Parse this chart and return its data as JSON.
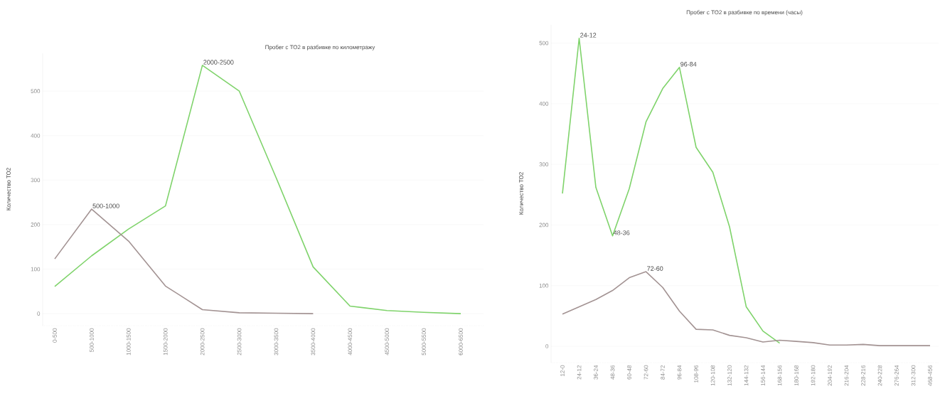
{
  "chart_data": [
    {
      "type": "line",
      "title": "Пробег с ТО2 в разбивке по километражу",
      "ylabel": "Количество ТО2",
      "categories": [
        "0-500",
        "500-1000",
        "1000-1500",
        "1500-2000",
        "2000-2500",
        "2500-3000",
        "3000-3500",
        "3500-4000",
        "4000-4500",
        "4500-5000",
        "5000-5500",
        "6000-6500"
      ],
      "series": [
        {
          "color": "#7fd36b",
          "values": [
            61,
            130,
            190,
            242,
            558,
            500,
            305,
            105,
            17,
            7,
            3,
            0
          ]
        },
        {
          "color": "#a39393",
          "values": [
            123,
            235,
            163,
            62,
            9,
            2,
            1,
            0,
            null,
            null,
            null,
            null
          ]
        }
      ],
      "ylim": [
        -27,
        585
      ],
      "yticks": [
        0,
        100,
        200,
        300,
        400,
        500
      ],
      "grid": "y",
      "annotations": [
        {
          "text": "500-1000",
          "x": "500-1000",
          "y": 235
        },
        {
          "text": "2000-2500",
          "x": "2000-2500",
          "y": 558
        }
      ]
    },
    {
      "type": "line",
      "title": "Пробег с ТО2 в разбивке по времени (часы)",
      "ylabel": "Количество ТО2",
      "categories": [
        "12-0",
        "24-12",
        "36-24",
        "48-36",
        "60-48",
        "72-60",
        "84-72",
        "96-84",
        "108-96",
        "120-108",
        "132-120",
        "144-132",
        "156-144",
        "168-156",
        "180-168",
        "192-180",
        "204-192",
        "216-204",
        "228-216",
        "240-228",
        "276-264",
        "312-300",
        "468-456"
      ],
      "series": [
        {
          "color": "#7fd36b",
          "values": [
            252,
            508,
            262,
            182,
            260,
            370,
            425,
            460,
            328,
            287,
            197,
            65,
            25,
            5,
            null,
            null,
            null,
            null,
            null,
            null,
            null,
            null,
            null
          ]
        },
        {
          "color": "#a39393",
          "values": [
            53,
            65,
            77,
            92,
            113,
            123,
            97,
            58,
            28,
            27,
            18,
            14,
            7,
            10,
            8,
            6,
            2,
            2,
            3,
            1,
            1,
            1,
            1
          ]
        }
      ],
      "ylim": [
        -27,
        530
      ],
      "yticks": [
        0,
        100,
        200,
        300,
        400,
        500
      ],
      "grid": "y",
      "annotations": [
        {
          "text": "24-12",
          "x": "24-12",
          "y": 508
        },
        {
          "text": "96-84",
          "x": "96-84",
          "y": 460
        },
        {
          "text": "48-36",
          "x": "48-36",
          "y": 182
        },
        {
          "text": "72-60",
          "x": "72-60",
          "y": 123
        }
      ]
    }
  ]
}
